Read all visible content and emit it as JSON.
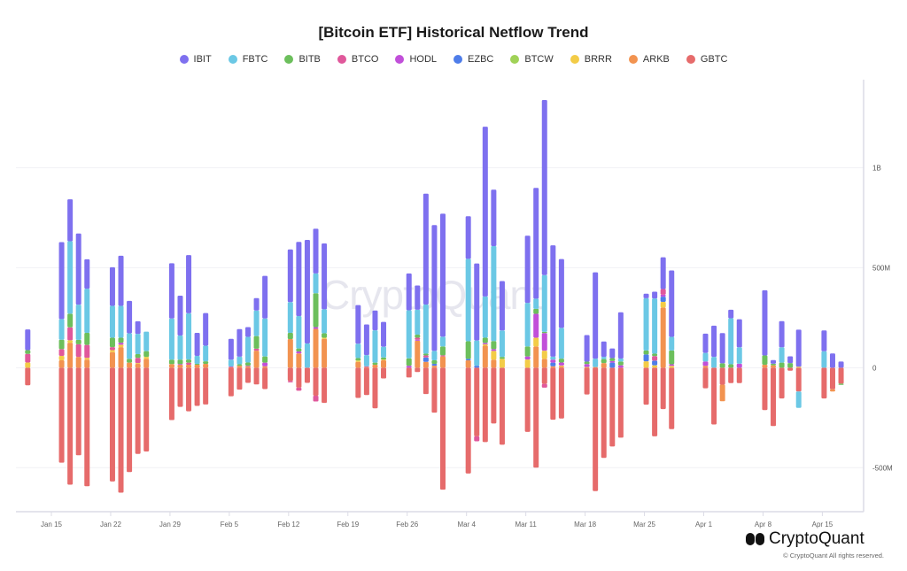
{
  "chart_data": {
    "type": "bar",
    "stacked": true,
    "title": "[Bitcoin ETF] Historical Netflow Trend",
    "xlabel": "",
    "ylabel": "",
    "ylim": [
      -720,
      1440
    ],
    "y_unit": "USD millions",
    "legend_position": "top-center",
    "grid": true,
    "y_ticks": [
      {
        "value": 1000,
        "label": "1B"
      },
      {
        "value": 500,
        "label": "500M"
      },
      {
        "value": 0,
        "label": "0"
      },
      {
        "value": -500,
        "label": "-500M"
      }
    ],
    "x_ticks": [
      "Jan 15",
      "Jan 22",
      "Jan 29",
      "Feb 5",
      "Feb 12",
      "Feb 19",
      "Feb 26",
      "Mar 4",
      "Mar 11",
      "Mar 18",
      "Mar 25",
      "Apr 1",
      "Apr 8",
      "Apr 15"
    ],
    "categories": [
      "Jan 12",
      "Jan 16",
      "Jan 17",
      "Jan 18",
      "Jan 19",
      "Jan 22",
      "Jan 23",
      "Jan 24",
      "Jan 25",
      "Jan 26",
      "Jan 29",
      "Jan 30",
      "Jan 31",
      "Feb 1",
      "Feb 2",
      "Feb 5",
      "Feb 6",
      "Feb 7",
      "Feb 8",
      "Feb 9",
      "Feb 12",
      "Feb 13",
      "Feb 14",
      "Feb 15",
      "Feb 16",
      "Feb 20",
      "Feb 21",
      "Feb 22",
      "Feb 23",
      "Feb 26",
      "Feb 27",
      "Feb 28",
      "Feb 29",
      "Mar 1",
      "Mar 4",
      "Mar 5",
      "Mar 6",
      "Mar 7",
      "Mar 8",
      "Mar 11",
      "Mar 12",
      "Mar 13",
      "Mar 14",
      "Mar 15",
      "Mar 18",
      "Mar 19",
      "Mar 20",
      "Mar 21",
      "Mar 22",
      "Mar 25",
      "Mar 26",
      "Mar 27",
      "Mar 28",
      "Apr 1",
      "Apr 2",
      "Apr 3",
      "Apr 4",
      "Apr 5",
      "Apr 8",
      "Apr 9",
      "Apr 10",
      "Apr 11",
      "Apr 12",
      "Apr 15",
      "Apr 16",
      "Apr 17"
    ],
    "series": [
      {
        "name": "IBIT",
        "color": "#7e70ef",
        "values": [
          103,
          385,
          210,
          356,
          147,
          193,
          251,
          162,
          63,
          0,
          276,
          199,
          291,
          115,
          163,
          104,
          138,
          49,
          62,
          213,
          263,
          371,
          518,
          224,
          329,
          193,
          153,
          99,
          124,
          184,
          121,
          554,
          629,
          615,
          213,
          385,
          849,
          282,
          247,
          336,
          554,
          875,
          557,
          344,
          133,
          432,
          77,
          48,
          231,
          23,
          34,
          159,
          332,
          96,
          156,
          151,
          43,
          140,
          326,
          18,
          131,
          34,
          185,
          104,
          71,
          31
        ]
      },
      {
        "name": "FBTC",
        "color": "#6bc8e5",
        "values": [
          0,
          103,
          362,
          176,
          221,
          159,
          159,
          128,
          101,
          97,
          206,
          121,
          231,
          40,
          78,
          34,
          38,
          128,
          128,
          190,
          154,
          162,
          121,
          99,
          120,
          72,
          56,
          162,
          54,
          240,
          125,
          246,
          47,
          49,
          412,
          126,
          206,
          475,
          132,
          218,
          51,
          284,
          15,
          154,
          0,
          42,
          11,
          0,
          15,
          261,
          276,
          0,
          68,
          43,
          54,
          0,
          230,
          82,
          0,
          0,
          77,
          0,
          -82,
          82,
          0,
          0
        ]
      },
      {
        "name": "BITB",
        "color": "#6cbf5c",
        "values": [
          19,
          47,
          68,
          22,
          60,
          47,
          25,
          19,
          19,
          29,
          22,
          22,
          16,
          4,
          13,
          0,
          7,
          16,
          63,
          31,
          31,
          15,
          0,
          169,
          22,
          12,
          0,
          10,
          10,
          37,
          15,
          9,
          18,
          44,
          88,
          0,
          26,
          40,
          10,
          50,
          25,
          6,
          0,
          19,
          12,
          0,
          20,
          15,
          19,
          20,
          12,
          0,
          69,
          0,
          0,
          22,
          17,
          0,
          46,
          8,
          25,
          23,
          0,
          0,
          0,
          -6
        ]
      },
      {
        "name": "BTCO",
        "color": "#e0589b",
        "values": [
          43,
          34,
          65,
          63,
          65,
          15,
          0,
          0,
          26,
          0,
          0,
          0,
          10,
          0,
          0,
          0,
          0,
          0,
          10,
          0,
          -7,
          -15,
          0,
          -29,
          0,
          0,
          0,
          0,
          0,
          0,
          10,
          10,
          0,
          6,
          0,
          -25,
          0,
          0,
          0,
          0,
          0,
          -19,
          0,
          0,
          0,
          0,
          0,
          0,
          0,
          0,
          23,
          28,
          0,
          0,
          0,
          0,
          0,
          0,
          0,
          0,
          0,
          0,
          0,
          0,
          0,
          0
        ]
      },
      {
        "name": "HODL",
        "color": "#c14fd9",
        "values": [
          0,
          0,
          0,
          0,
          0,
          0,
          10,
          0,
          0,
          0,
          0,
          3,
          0,
          0,
          0,
          3,
          0,
          3,
          0,
          18,
          0,
          10,
          0,
          9,
          0,
          0,
          3,
          0,
          0,
          10,
          5,
          0,
          0,
          0,
          0,
          0,
          7,
          9,
          0,
          15,
          119,
          88,
          15,
          15,
          15,
          0,
          0,
          8,
          12,
          0,
          0,
          10,
          8,
          22,
          0,
          0,
          0,
          20,
          0,
          0,
          0,
          0,
          0,
          0,
          0,
          0
        ]
      },
      {
        "name": "EZBC",
        "color": "#4e7de9",
        "values": [
          0,
          0,
          0,
          0,
          0,
          0,
          0,
          0,
          0,
          0,
          0,
          0,
          0,
          0,
          0,
          0,
          0,
          0,
          0,
          0,
          0,
          0,
          0,
          0,
          0,
          0,
          0,
          0,
          0,
          0,
          0,
          22,
          9,
          0,
          7,
          10,
          0,
          0,
          0,
          0,
          0,
          0,
          18,
          0,
          0,
          0,
          0,
          25,
          0,
          34,
          23,
          26,
          0,
          0,
          0,
          0,
          0,
          0,
          0,
          0,
          0,
          0,
          0,
          0,
          0,
          0
        ]
      },
      {
        "name": "BTCW",
        "color": "#a0d257",
        "values": [
          0,
          0,
          0,
          0,
          0,
          0,
          0,
          0,
          0,
          0,
          0,
          0,
          0,
          0,
          0,
          0,
          0,
          0,
          0,
          0,
          0,
          0,
          0,
          0,
          0,
          0,
          0,
          0,
          0,
          0,
          0,
          0,
          0,
          0,
          0,
          0,
          0,
          0,
          0,
          0,
          0,
          0,
          0,
          0,
          0,
          0,
          0,
          0,
          0,
          0,
          0,
          0,
          0,
          0,
          0,
          0,
          0,
          0,
          0,
          0,
          0,
          0,
          0,
          0,
          0,
          0
        ]
      },
      {
        "name": "BRRR",
        "color": "#f3cc47",
        "values": [
          26,
          22,
          12,
          0,
          9,
          10,
          12,
          0,
          4,
          10,
          0,
          0,
          0,
          0,
          0,
          0,
          0,
          0,
          0,
          0,
          0,
          0,
          0,
          0,
          6,
          7,
          0,
          0,
          4,
          0,
          0,
          0,
          0,
          0,
          0,
          0,
          7,
          44,
          44,
          41,
          44,
          41,
          0,
          4,
          3,
          0,
          0,
          0,
          0,
          32,
          12,
          28,
          9,
          0,
          0,
          0,
          0,
          0,
          0,
          0,
          0,
          0,
          5,
          0,
          0,
          0
        ]
      },
      {
        "name": "ARKB",
        "color": "#f29350",
        "values": [
          0,
          37,
          125,
          54,
          40,
          78,
          103,
          25,
          19,
          44,
          18,
          15,
          15,
          15,
          19,
          3,
          10,
          7,
          85,
          7,
          143,
          71,
          0,
          194,
          144,
          29,
          4,
          15,
          37,
          0,
          135,
          29,
          10,
          56,
          37,
          0,
          110,
          40,
          0,
          0,
          106,
          44,
          7,
          7,
          0,
          3,
          23,
          0,
          0,
          0,
          0,
          301,
          0,
          9,
          0,
          -83,
          0,
          0,
          15,
          12,
          0,
          0,
          0,
          0,
          -11,
          0
        ]
      },
      {
        "name": "GBTC",
        "color": "#e66b6b",
        "values": [
          -88,
          -475,
          -585,
          -438,
          -593,
          -569,
          -625,
          -522,
          -431,
          -419,
          -262,
          -196,
          -218,
          -191,
          -184,
          -143,
          -110,
          -76,
          -84,
          -107,
          -66,
          -100,
          -76,
          -140,
          -176,
          -151,
          -137,
          -203,
          -54,
          -49,
          -22,
          -132,
          -225,
          -610,
          -529,
          -343,
          -372,
          -279,
          -385,
          -321,
          -500,
          -81,
          -260,
          -254,
          -134,
          -617,
          -451,
          -394,
          -350,
          -185,
          -343,
          -207,
          -307,
          -103,
          -284,
          -85,
          -77,
          -77,
          -212,
          -292,
          -154,
          -15,
          -119,
          -154,
          -108,
          -80
        ]
      }
    ]
  },
  "watermark": "CryptoQuant",
  "footer": {
    "brand": "CryptoQuant",
    "copyright": "© CryptoQuant All rights reserved."
  }
}
